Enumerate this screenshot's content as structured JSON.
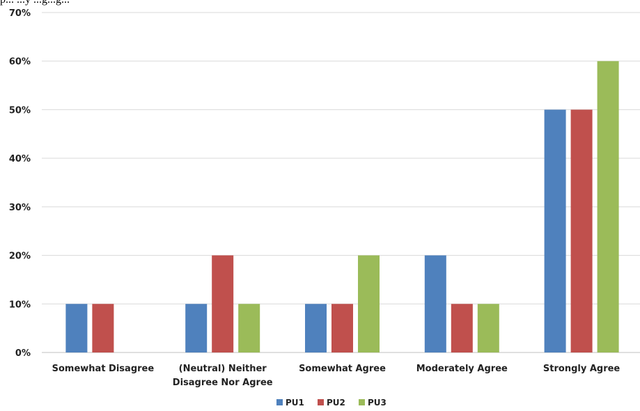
{
  "caption_fragment": "p... ...y ...g...g...",
  "chart_data": {
    "type": "bar",
    "categories": [
      [
        "Somewhat Disagree"
      ],
      [
        "(Neutral) Neither",
        "Disagree Nor Agree"
      ],
      [
        "Somewhat Agree"
      ],
      [
        "Moderately Agree"
      ],
      [
        "Strongly Agree"
      ]
    ],
    "series": [
      {
        "name": "PU1",
        "color": "#4f81bd",
        "values": [
          10,
          10,
          10,
          20,
          50
        ]
      },
      {
        "name": "PU2",
        "color": "#c0504d",
        "values": [
          10,
          20,
          10,
          10,
          50
        ]
      },
      {
        "name": "PU3",
        "color": "#9bbb59",
        "values": [
          0,
          10,
          20,
          10,
          60
        ]
      }
    ],
    "ylim": [
      0,
      70
    ],
    "yticks": [
      0,
      10,
      20,
      30,
      40,
      50,
      60,
      70
    ],
    "ytick_suffix": "%",
    "grid": true,
    "legend_position": "bottom",
    "gridline_color": "#d9d9d9"
  }
}
